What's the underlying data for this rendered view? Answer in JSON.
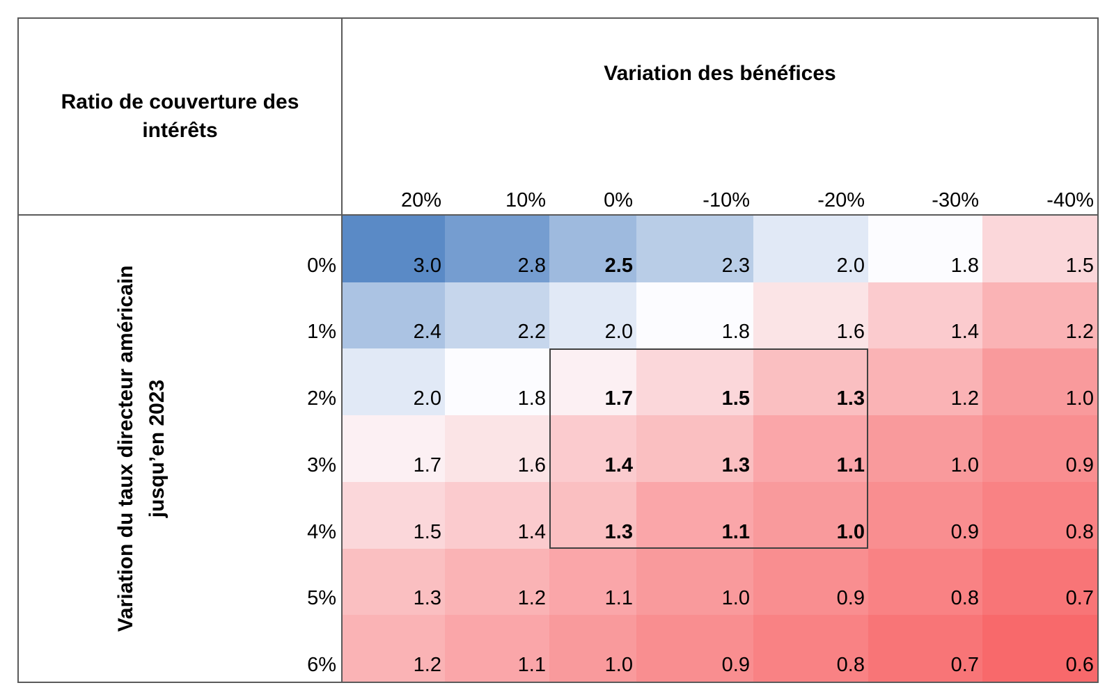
{
  "colors": {
    "background": "#ffffff",
    "table_border": "#5a5a5a",
    "highlight_border": "#404040",
    "text": "#000000"
  },
  "chart_data": {
    "type": "heatmap",
    "corner_label": "Ratio de couverture des intérêts",
    "col_axis_title": "Variation des bénéfices",
    "row_axis_title": "Variation du taux directeur américain jusqu’en 2023",
    "row_axis_title_lines": [
      "Variation du taux directeur américain",
      "jusqu’en 2023"
    ],
    "columns": [
      "20%",
      "10%",
      "0%",
      "-10%",
      "-20%",
      "-30%",
      "-40%"
    ],
    "rows": [
      "0%",
      "1%",
      "2%",
      "3%",
      "4%",
      "5%",
      "6%"
    ],
    "values": [
      [
        3.0,
        2.8,
        2.5,
        2.3,
        2.0,
        1.8,
        1.5
      ],
      [
        2.4,
        2.2,
        2.0,
        1.8,
        1.6,
        1.4,
        1.2
      ],
      [
        2.0,
        1.8,
        1.7,
        1.5,
        1.3,
        1.2,
        1.0
      ],
      [
        1.7,
        1.6,
        1.4,
        1.3,
        1.1,
        1.0,
        0.9
      ],
      [
        1.5,
        1.4,
        1.3,
        1.1,
        1.0,
        0.9,
        0.8
      ],
      [
        1.3,
        1.2,
        1.1,
        1.0,
        0.9,
        0.8,
        0.7
      ],
      [
        1.2,
        1.1,
        1.0,
        0.9,
        0.8,
        0.7,
        0.6
      ]
    ],
    "value_decimals": 1,
    "bold_cells": [
      [
        0,
        2
      ],
      [
        2,
        2
      ],
      [
        2,
        3
      ],
      [
        2,
        4
      ],
      [
        3,
        2
      ],
      [
        3,
        3
      ],
      [
        3,
        4
      ],
      [
        4,
        2
      ],
      [
        4,
        3
      ],
      [
        4,
        4
      ]
    ],
    "highlight_box": {
      "row_start": 2,
      "row_end": 4,
      "col_start": 2,
      "col_end": 4
    },
    "color_scale": {
      "min": 0.6,
      "mid": 1.8,
      "max": 3.0,
      "min_color": "#f8696b",
      "mid_color": "#fcfcff",
      "max_color": "#5a8ac6"
    },
    "legend": "none",
    "grid_lines": "off"
  }
}
